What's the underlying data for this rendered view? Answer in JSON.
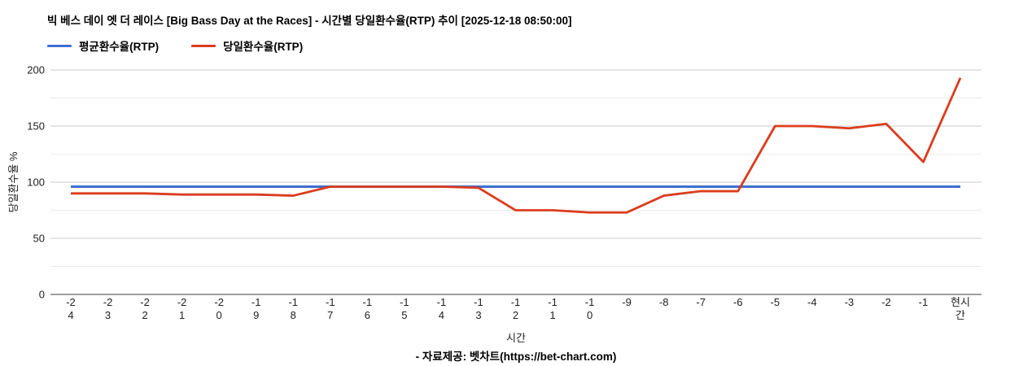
{
  "title": "빅 베스 데이 엣 더 레이스 [Big Bass Day at the Races] - 시간별 당일환수율(RTP) 추이 [2025-12-18 08:50:00]",
  "legend": [
    {
      "label": "평균환수율(RTP)",
      "color": "#3e6fd0"
    },
    {
      "label": "당일환수율(RTP)",
      "color": "#dc3c1e"
    }
  ],
  "footer": "- 자료제공: 벳차트(https://bet-chart.com)",
  "colors": {
    "average_line": "#3e6fd0",
    "daily_line": "#dc3c1e",
    "major_gridline": "#cccccc",
    "minor_gridline": "#ebebeb",
    "axis_line": "#424242",
    "tick_text": "#212121"
  },
  "chart_data": {
    "type": "line",
    "title": "빅 베스 데이 엣 더 레이스 [Big Bass Day at the Races] - 시간별 당일환수율(RTP) 추이 [2025-12-18 08:50:00]",
    "xlabel": "시간",
    "ylabel": "당일환수율 %",
    "ylim": [
      0,
      200
    ],
    "yticks": [
      0,
      50,
      100,
      150,
      200
    ],
    "minor_yticks": [
      25,
      75,
      125,
      175
    ],
    "grid": true,
    "legend_position": "top-left",
    "categories": [
      "-24",
      "-23",
      "-22",
      "-21",
      "-20",
      "-19",
      "-18",
      "-17",
      "-16",
      "-15",
      "-14",
      "-13",
      "-12",
      "-11",
      "-10",
      "-9",
      "-8",
      "-7",
      "-6",
      "-5",
      "-4",
      "-3",
      "-2",
      "-1",
      "현시간"
    ],
    "series": [
      {
        "name": "평균환수율(RTP)",
        "color": "#3e6fd0",
        "values": [
          96,
          96,
          96,
          96,
          96,
          96,
          96,
          96,
          96,
          96,
          96,
          96,
          96,
          96,
          96,
          96,
          96,
          96,
          96,
          96,
          96,
          96,
          96,
          96,
          96
        ]
      },
      {
        "name": "당일환수율(RTP)",
        "color": "#dc3c1e",
        "values": [
          90,
          90,
          90,
          89,
          89,
          89,
          88,
          96,
          96,
          96,
          96,
          95,
          75,
          75,
          73,
          73,
          88,
          92,
          92,
          150,
          150,
          148,
          152,
          118,
          193
        ]
      }
    ]
  }
}
